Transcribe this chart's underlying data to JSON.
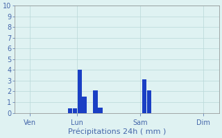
{
  "title": "",
  "xlabel": "Précipitations 24h ( mm )",
  "background_color": "#dff2f2",
  "bar_color": "#1a3fc4",
  "ylim": [
    0,
    10
  ],
  "yticks": [
    0,
    1,
    2,
    3,
    4,
    5,
    6,
    7,
    8,
    9,
    10
  ],
  "grid_color": "#b8d8d8",
  "x_tick_labels": [
    "Ven",
    "Lun",
    "Sam",
    "Dim"
  ],
  "x_tick_positions": [
    1,
    4,
    8,
    12
  ],
  "bars": [
    {
      "x": 3.55,
      "height": 0.4
    },
    {
      "x": 3.85,
      "height": 0.4
    },
    {
      "x": 4.15,
      "height": 4.0
    },
    {
      "x": 4.45,
      "height": 1.5
    },
    {
      "x": 5.15,
      "height": 2.1
    },
    {
      "x": 5.45,
      "height": 0.5
    },
    {
      "x": 8.25,
      "height": 3.1
    },
    {
      "x": 8.55,
      "height": 2.1
    }
  ],
  "bar_width": 0.28,
  "xlim": [
    0,
    13
  ],
  "spine_color": "#888888",
  "tick_color": "#4466aa",
  "tick_labelsize": 7,
  "xlabel_fontsize": 8
}
